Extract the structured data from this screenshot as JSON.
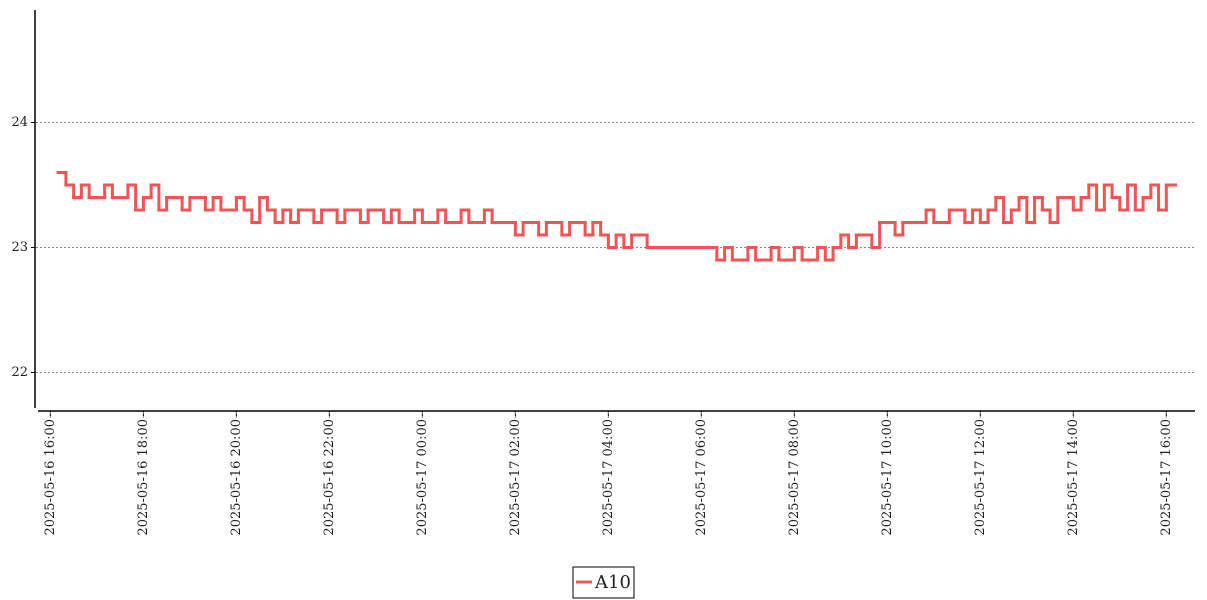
{
  "chart_data": {
    "type": "line",
    "step": "post",
    "x": [
      "2025-05-16 16:10",
      "2025-05-16 16:20",
      "2025-05-16 16:30",
      "2025-05-16 16:40",
      "2025-05-16 16:50",
      "2025-05-16 17:00",
      "2025-05-16 17:10",
      "2025-05-16 17:20",
      "2025-05-16 17:30",
      "2025-05-16 17:40",
      "2025-05-16 17:50",
      "2025-05-16 18:00",
      "2025-05-16 18:10",
      "2025-05-16 18:20",
      "2025-05-16 18:30",
      "2025-05-16 18:40",
      "2025-05-16 18:50",
      "2025-05-16 19:00",
      "2025-05-16 19:10",
      "2025-05-16 19:20",
      "2025-05-16 19:30",
      "2025-05-16 19:40",
      "2025-05-16 19:50",
      "2025-05-16 20:00",
      "2025-05-16 20:10",
      "2025-05-16 20:20",
      "2025-05-16 20:30",
      "2025-05-16 20:40",
      "2025-05-16 20:50",
      "2025-05-16 21:00",
      "2025-05-16 21:10",
      "2025-05-16 21:20",
      "2025-05-16 21:30",
      "2025-05-16 21:40",
      "2025-05-16 21:50",
      "2025-05-16 22:00",
      "2025-05-16 22:10",
      "2025-05-16 22:20",
      "2025-05-16 22:30",
      "2025-05-16 22:40",
      "2025-05-16 22:50",
      "2025-05-16 23:00",
      "2025-05-16 23:10",
      "2025-05-16 23:20",
      "2025-05-16 23:30",
      "2025-05-16 23:40",
      "2025-05-16 23:50",
      "2025-05-17 00:00",
      "2025-05-17 00:10",
      "2025-05-17 00:20",
      "2025-05-17 00:30",
      "2025-05-17 00:40",
      "2025-05-17 00:50",
      "2025-05-17 01:00",
      "2025-05-17 01:10",
      "2025-05-17 01:20",
      "2025-05-17 01:30",
      "2025-05-17 01:40",
      "2025-05-17 01:50",
      "2025-05-17 02:00",
      "2025-05-17 02:10",
      "2025-05-17 02:20",
      "2025-05-17 02:30",
      "2025-05-17 02:40",
      "2025-05-17 02:50",
      "2025-05-17 03:00",
      "2025-05-17 03:10",
      "2025-05-17 03:20",
      "2025-05-17 03:30",
      "2025-05-17 03:40",
      "2025-05-17 03:50",
      "2025-05-17 04:00",
      "2025-05-17 04:10",
      "2025-05-17 04:20",
      "2025-05-17 04:30",
      "2025-05-17 04:40",
      "2025-05-17 04:50",
      "2025-05-17 05:00",
      "2025-05-17 05:10",
      "2025-05-17 05:20",
      "2025-05-17 05:30",
      "2025-05-17 05:40",
      "2025-05-17 05:50",
      "2025-05-17 06:00",
      "2025-05-17 06:10",
      "2025-05-17 06:20",
      "2025-05-17 06:30",
      "2025-05-17 06:40",
      "2025-05-17 06:50",
      "2025-05-17 07:00",
      "2025-05-17 07:10",
      "2025-05-17 07:20",
      "2025-05-17 07:30",
      "2025-05-17 07:40",
      "2025-05-17 07:50",
      "2025-05-17 08:00",
      "2025-05-17 08:10",
      "2025-05-17 08:20",
      "2025-05-17 08:30",
      "2025-05-17 08:40",
      "2025-05-17 08:50",
      "2025-05-17 09:00",
      "2025-05-17 09:10",
      "2025-05-17 09:20",
      "2025-05-17 09:30",
      "2025-05-17 09:40",
      "2025-05-17 09:50",
      "2025-05-17 10:00",
      "2025-05-17 10:10",
      "2025-05-17 10:20",
      "2025-05-17 10:30",
      "2025-05-17 10:40",
      "2025-05-17 10:50",
      "2025-05-17 11:00",
      "2025-05-17 11:10",
      "2025-05-17 11:20",
      "2025-05-17 11:30",
      "2025-05-17 11:40",
      "2025-05-17 11:50",
      "2025-05-17 12:00",
      "2025-05-17 12:10",
      "2025-05-17 12:20",
      "2025-05-17 12:30",
      "2025-05-17 12:40",
      "2025-05-17 12:50",
      "2025-05-17 13:00",
      "2025-05-17 13:10",
      "2025-05-17 13:20",
      "2025-05-17 13:30",
      "2025-05-17 13:40",
      "2025-05-17 13:50",
      "2025-05-17 14:00",
      "2025-05-17 14:10",
      "2025-05-17 14:20",
      "2025-05-17 14:30",
      "2025-05-17 14:40",
      "2025-05-17 14:50",
      "2025-05-17 15:00",
      "2025-05-17 15:10",
      "2025-05-17 15:20",
      "2025-05-17 15:30",
      "2025-05-17 15:40",
      "2025-05-17 15:50",
      "2025-05-17 16:00",
      "2025-05-17 16:10"
    ],
    "series": [
      {
        "name": "A10",
        "color": "#f05454",
        "values": [
          23.6,
          23.5,
          23.4,
          23.5,
          23.4,
          23.4,
          23.5,
          23.4,
          23.4,
          23.5,
          23.3,
          23.4,
          23.5,
          23.3,
          23.4,
          23.4,
          23.3,
          23.4,
          23.4,
          23.3,
          23.4,
          23.3,
          23.3,
          23.4,
          23.3,
          23.2,
          23.4,
          23.3,
          23.2,
          23.3,
          23.2,
          23.3,
          23.3,
          23.2,
          23.3,
          23.3,
          23.2,
          23.3,
          23.3,
          23.2,
          23.3,
          23.3,
          23.2,
          23.3,
          23.2,
          23.2,
          23.3,
          23.2,
          23.2,
          23.3,
          23.2,
          23.2,
          23.3,
          23.2,
          23.2,
          23.3,
          23.2,
          23.2,
          23.2,
          23.1,
          23.2,
          23.2,
          23.1,
          23.2,
          23.2,
          23.1,
          23.2,
          23.2,
          23.1,
          23.2,
          23.1,
          23.0,
          23.1,
          23.0,
          23.1,
          23.1,
          23.0,
          23.0,
          23.0,
          23.0,
          23.0,
          23.0,
          23.0,
          23.0,
          23.0,
          22.9,
          23.0,
          22.9,
          22.9,
          23.0,
          22.9,
          22.9,
          23.0,
          22.9,
          22.9,
          23.0,
          22.9,
          22.9,
          23.0,
          22.9,
          23.0,
          23.1,
          23.0,
          23.1,
          23.1,
          23.0,
          23.2,
          23.2,
          23.1,
          23.2,
          23.2,
          23.2,
          23.3,
          23.2,
          23.2,
          23.3,
          23.3,
          23.2,
          23.3,
          23.2,
          23.3,
          23.4,
          23.2,
          23.3,
          23.4,
          23.2,
          23.4,
          23.3,
          23.2,
          23.4,
          23.4,
          23.3,
          23.4,
          23.5,
          23.3,
          23.5,
          23.4,
          23.3,
          23.5,
          23.3,
          23.4,
          23.5,
          23.3,
          23.5,
          23.5
        ]
      }
    ],
    "xlim": [
      "2025-05-16 15:44",
      "2025-05-17 16:37"
    ],
    "xticks": [
      "2025-05-16 16:00",
      "2025-05-16 18:00",
      "2025-05-16 20:00",
      "2025-05-16 22:00",
      "2025-05-17 00:00",
      "2025-05-17 02:00",
      "2025-05-17 04:00",
      "2025-05-17 06:00",
      "2025-05-17 08:00",
      "2025-05-17 10:00",
      "2025-05-17 12:00",
      "2025-05-17 14:00",
      "2025-05-17 16:00"
    ],
    "ylim": [
      21.7,
      24.9
    ],
    "yticks": [
      22,
      23,
      24
    ],
    "grid": true,
    "legend": "bottom"
  }
}
